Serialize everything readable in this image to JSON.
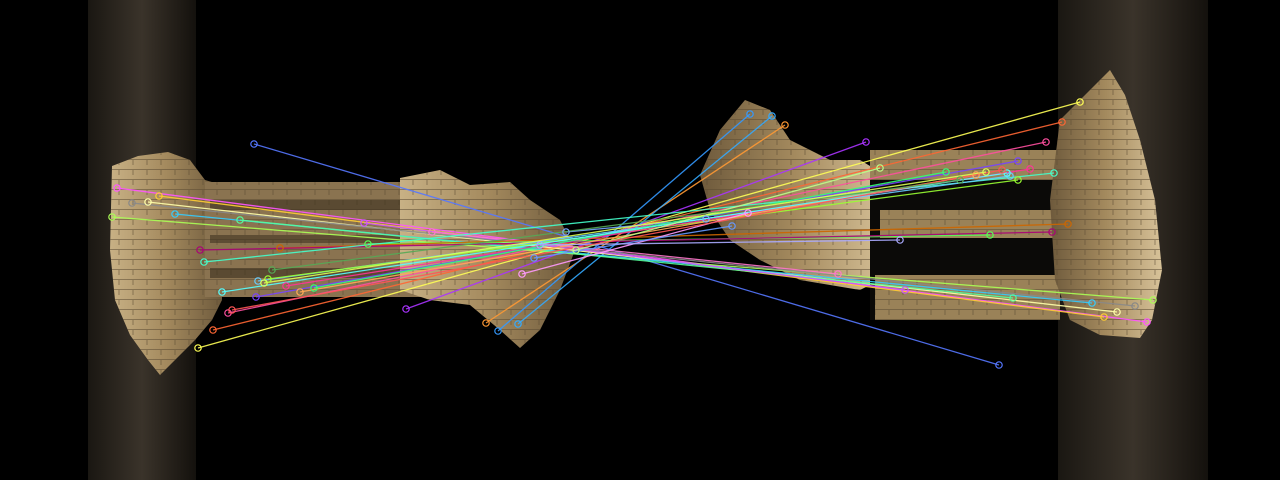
{
  "colors": {
    "background": "#000000",
    "stone_light": "#d8c39a",
    "stone_mid": "#b89c6c",
    "stone_dark": "#7a6442",
    "side_strip": "#2a241c"
  },
  "matches": [
    {
      "color": "#ffff55",
      "left": [
        198,
        348
      ],
      "right": [
        1080,
        102
      ]
    },
    {
      "color": "#ff6633",
      "left": [
        213,
        330
      ],
      "right": [
        1062,
        122
      ]
    },
    {
      "color": "#ff4fa0",
      "left": [
        228,
        313
      ],
      "right": [
        1046,
        142
      ]
    },
    {
      "color": "#aa33ff",
      "left": [
        406,
        309
      ],
      "right": [
        866,
        142
      ]
    },
    {
      "color": "#ff9933",
      "left": [
        486,
        323
      ],
      "right": [
        785,
        125
      ]
    },
    {
      "color": "#3399ff",
      "left": [
        498,
        331
      ],
      "right": [
        750,
        114
      ]
    },
    {
      "color": "#33aaff",
      "left": [
        518,
        324
      ],
      "right": [
        772,
        116
      ]
    },
    {
      "color": "#5577ff",
      "left": [
        254,
        144
      ],
      "right": [
        999,
        365
      ]
    },
    {
      "color": "#ff55ff",
      "left": [
        117,
        188
      ],
      "right": [
        1147,
        322
      ]
    },
    {
      "color": "#ffcc33",
      "left": [
        159,
        196
      ],
      "right": [
        1104,
        317
      ]
    },
    {
      "color": "#ffffaa",
      "left": [
        148,
        202
      ],
      "right": [
        1117,
        312
      ]
    },
    {
      "color": "#aaff55",
      "left": [
        112,
        217
      ],
      "right": [
        1153,
        300
      ]
    },
    {
      "color": "#33ccff",
      "left": [
        175,
        214
      ],
      "right": [
        1092,
        303
      ]
    },
    {
      "color": "#888888",
      "left": [
        132,
        203
      ],
      "right": [
        1135,
        306
      ]
    },
    {
      "color": "#55ff99",
      "left": [
        240,
        220
      ],
      "right": [
        1013,
        298
      ]
    },
    {
      "color": "#cc55ff",
      "left": [
        364,
        223
      ],
      "right": [
        905,
        290
      ]
    },
    {
      "color": "#ff77cc",
      "left": [
        432,
        232
      ],
      "right": [
        838,
        274
      ]
    },
    {
      "color": "#77aaff",
      "left": [
        566,
        232
      ],
      "right": [
        706,
        219
      ]
    },
    {
      "color": "#55ff55",
      "left": [
        368,
        244
      ],
      "right": [
        990,
        235
      ]
    },
    {
      "color": "#cc6600",
      "left": [
        280,
        248
      ],
      "right": [
        1068,
        224
      ]
    },
    {
      "color": "#aa0077",
      "left": [
        200,
        250
      ],
      "right": [
        1052,
        232
      ]
    },
    {
      "color": "#44ffcc",
      "left": [
        204,
        262
      ],
      "right": [
        1054,
        173
      ]
    },
    {
      "color": "#66ccff",
      "left": [
        258,
        281
      ],
      "right": [
        1010,
        176
      ]
    },
    {
      "color": "#99ff33",
      "left": [
        268,
        279
      ],
      "right": [
        1018,
        180
      ]
    },
    {
      "color": "#ff3399",
      "left": [
        286,
        286
      ],
      "right": [
        1030,
        169
      ]
    },
    {
      "color": "#7744ff",
      "left": [
        256,
        297
      ],
      "right": [
        1018,
        161
      ]
    },
    {
      "color": "#33ff77",
      "left": [
        314,
        288
      ],
      "right": [
        946,
        172
      ]
    },
    {
      "color": "#ffaa55",
      "left": [
        300,
        292
      ],
      "right": [
        976,
        175
      ]
    },
    {
      "color": "#55ffff",
      "left": [
        222,
        292
      ],
      "right": [
        1007,
        173
      ]
    },
    {
      "color": "#ff99ff",
      "left": [
        522,
        274
      ],
      "right": [
        748,
        213
      ]
    },
    {
      "color": "#6699ff",
      "left": [
        534,
        258
      ],
      "right": [
        732,
        226
      ]
    },
    {
      "color": "#bbff88",
      "left": [
        576,
        250
      ],
      "right": [
        880,
        168
      ]
    },
    {
      "color": "#aaaaff",
      "left": [
        540,
        245
      ],
      "right": [
        900,
        240
      ]
    },
    {
      "color": "#ff5555",
      "left": [
        232,
        310
      ],
      "right": [
        1002,
        170
      ]
    },
    {
      "color": "#55aa55",
      "left": [
        272,
        270
      ],
      "right": [
        960,
        180
      ]
    },
    {
      "color": "#ddff55",
      "left": [
        264,
        283
      ],
      "right": [
        986,
        172
      ]
    }
  ]
}
